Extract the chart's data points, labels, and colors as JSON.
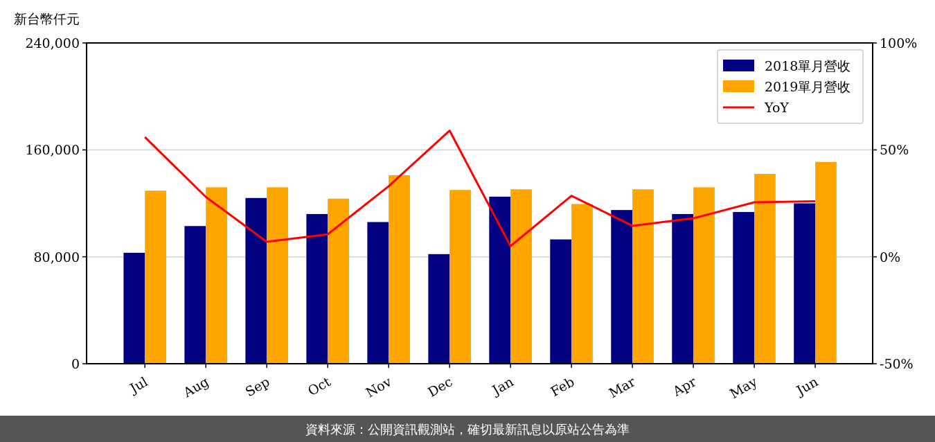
{
  "chart_data": {
    "type": "bar",
    "ylabel": "新台幣仟元",
    "categories": [
      "Jul",
      "Aug",
      "Sep",
      "Oct",
      "Nov",
      "Dec",
      "Jan",
      "Feb",
      "Mar",
      "Apr",
      "May",
      "Jun"
    ],
    "series": [
      {
        "name": "2018單月營收",
        "color": "#000080",
        "values": [
          83000,
          103000,
          124000,
          112000,
          106000,
          82000,
          125000,
          93000,
          115000,
          112000,
          113500,
          120000
        ]
      },
      {
        "name": "2019單月營收",
        "color": "#ffa500",
        "values": [
          129500,
          132000,
          132000,
          123500,
          141000,
          130000,
          130500,
          119500,
          130500,
          132000,
          142000,
          151000
        ]
      },
      {
        "name": "YoY",
        "type": "line",
        "axis": "y2",
        "color": "#ff0000",
        "values": [
          56,
          28,
          7,
          10.5,
          33,
          59,
          5,
          28.5,
          14.5,
          18,
          25.5,
          26
        ]
      }
    ],
    "ylim": [
      0,
      240000
    ],
    "yticks": [
      {
        "value": 0,
        "label": "0"
      },
      {
        "value": 80000,
        "label": "80,000"
      },
      {
        "value": 160000,
        "label": "160,000"
      },
      {
        "value": 240000,
        "label": "240,000"
      }
    ],
    "y2lim": [
      -50,
      100
    ],
    "y2ticks": [
      {
        "value": -50,
        "label": "-50%"
      },
      {
        "value": 0,
        "label": "0%"
      },
      {
        "value": 50,
        "label": "50%"
      },
      {
        "value": 100,
        "label": "100%"
      }
    ],
    "grid": "y",
    "legend": "top right",
    "annotations": [
      "資料來源：公開資訊觀測站，確切最新訊息以原站公告為準"
    ]
  }
}
